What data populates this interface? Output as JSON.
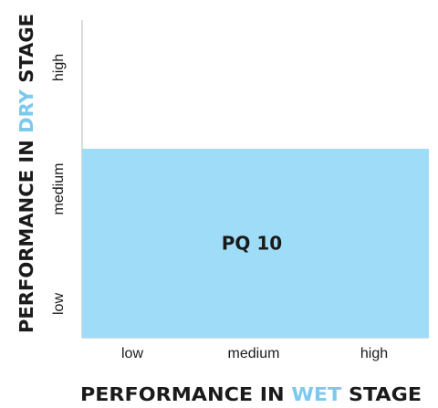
{
  "chart_data": {
    "type": "bar",
    "categories": [
      "low",
      "medium",
      "high"
    ],
    "y_levels": [
      "low",
      "medium",
      "high"
    ],
    "bars": [
      {
        "label": "PQ 10",
        "x_start": "low",
        "x_end": "high",
        "y_value": "medium"
      }
    ],
    "xlabel": {
      "before": "PERFORMANCE IN ",
      "highlight": "WET",
      "after": " STAGE"
    },
    "ylabel": {
      "before": "PERFORMANCE IN ",
      "highlight": "DRY",
      "after": " STAGE"
    },
    "grid": false,
    "bar_color": "#9fdcf7",
    "highlight_color": "#7cc9ee",
    "axis_color": "#cfcfcf"
  }
}
